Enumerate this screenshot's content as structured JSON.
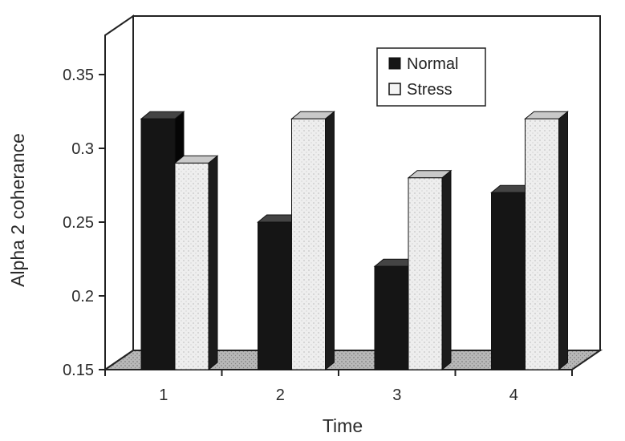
{
  "chart_data": {
    "type": "bar",
    "title": "",
    "xlabel": "Time",
    "ylabel": "Alpha 2 coherance",
    "categories": [
      "1",
      "2",
      "3",
      "4"
    ],
    "series": [
      {
        "name": "Normal",
        "values": [
          0.32,
          0.25,
          0.22,
          0.27
        ],
        "color": "#151515"
      },
      {
        "name": "Stress",
        "values": [
          0.29,
          0.32,
          0.28,
          0.32
        ],
        "color": "#ececec"
      }
    ],
    "ylim": [
      0.15,
      0.38
    ],
    "yticks": [
      "0.15",
      "0.2",
      "0.25",
      "0.3",
      "0.35"
    ],
    "legend_position": "top-right",
    "grid": false,
    "style": "3d"
  }
}
